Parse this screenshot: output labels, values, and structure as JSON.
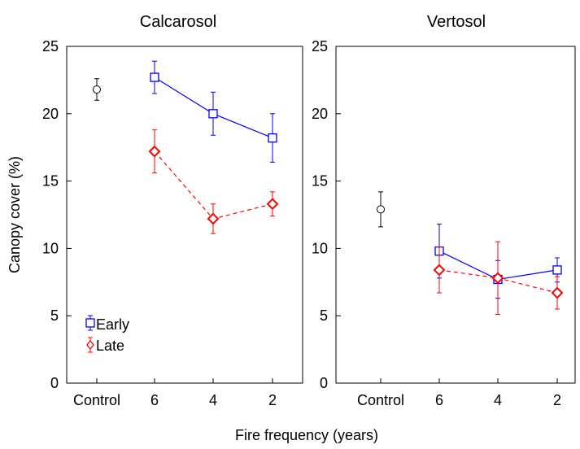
{
  "chart_data": {
    "type": "line",
    "xlabel": "Fire frequency (years)",
    "ylabel": "Canopy cover (%)",
    "ylim": [
      0,
      25
    ],
    "yticks": [
      0,
      5,
      10,
      15,
      20,
      25
    ],
    "categories": [
      "Control",
      "6",
      "4",
      "2"
    ],
    "legend": {
      "placement": "bottom-left of left panel",
      "entries": [
        {
          "name": "Early",
          "color": "#0000ff",
          "marker": "square",
          "style": "solid"
        },
        {
          "name": "Late",
          "color": "#ff0000",
          "marker": "diamond",
          "style": "dashed"
        }
      ]
    },
    "panels": [
      {
        "title": "Calcarosol",
        "control": {
          "value": 21.8,
          "error": 0.8
        },
        "series": [
          {
            "name": "Early",
            "x": [
              "6",
              "4",
              "2"
            ],
            "values": [
              22.7,
              20.0,
              18.2
            ],
            "errors": [
              1.2,
              1.6,
              1.8
            ]
          },
          {
            "name": "Late",
            "x": [
              "6",
              "4",
              "2"
            ],
            "values": [
              17.2,
              12.2,
              13.3
            ],
            "errors": [
              1.6,
              1.1,
              0.9
            ]
          }
        ]
      },
      {
        "title": "Vertosol",
        "control": {
          "value": 12.9,
          "error": 1.3
        },
        "series": [
          {
            "name": "Early",
            "x": [
              "6",
              "4",
              "2"
            ],
            "values": [
              9.8,
              7.7,
              8.4
            ],
            "errors": [
              2.0,
              1.4,
              0.9
            ]
          },
          {
            "name": "Late",
            "x": [
              "6",
              "4",
              "2"
            ],
            "values": [
              8.4,
              7.8,
              6.7
            ],
            "errors": [
              1.7,
              2.7,
              1.2
            ]
          }
        ]
      }
    ]
  }
}
